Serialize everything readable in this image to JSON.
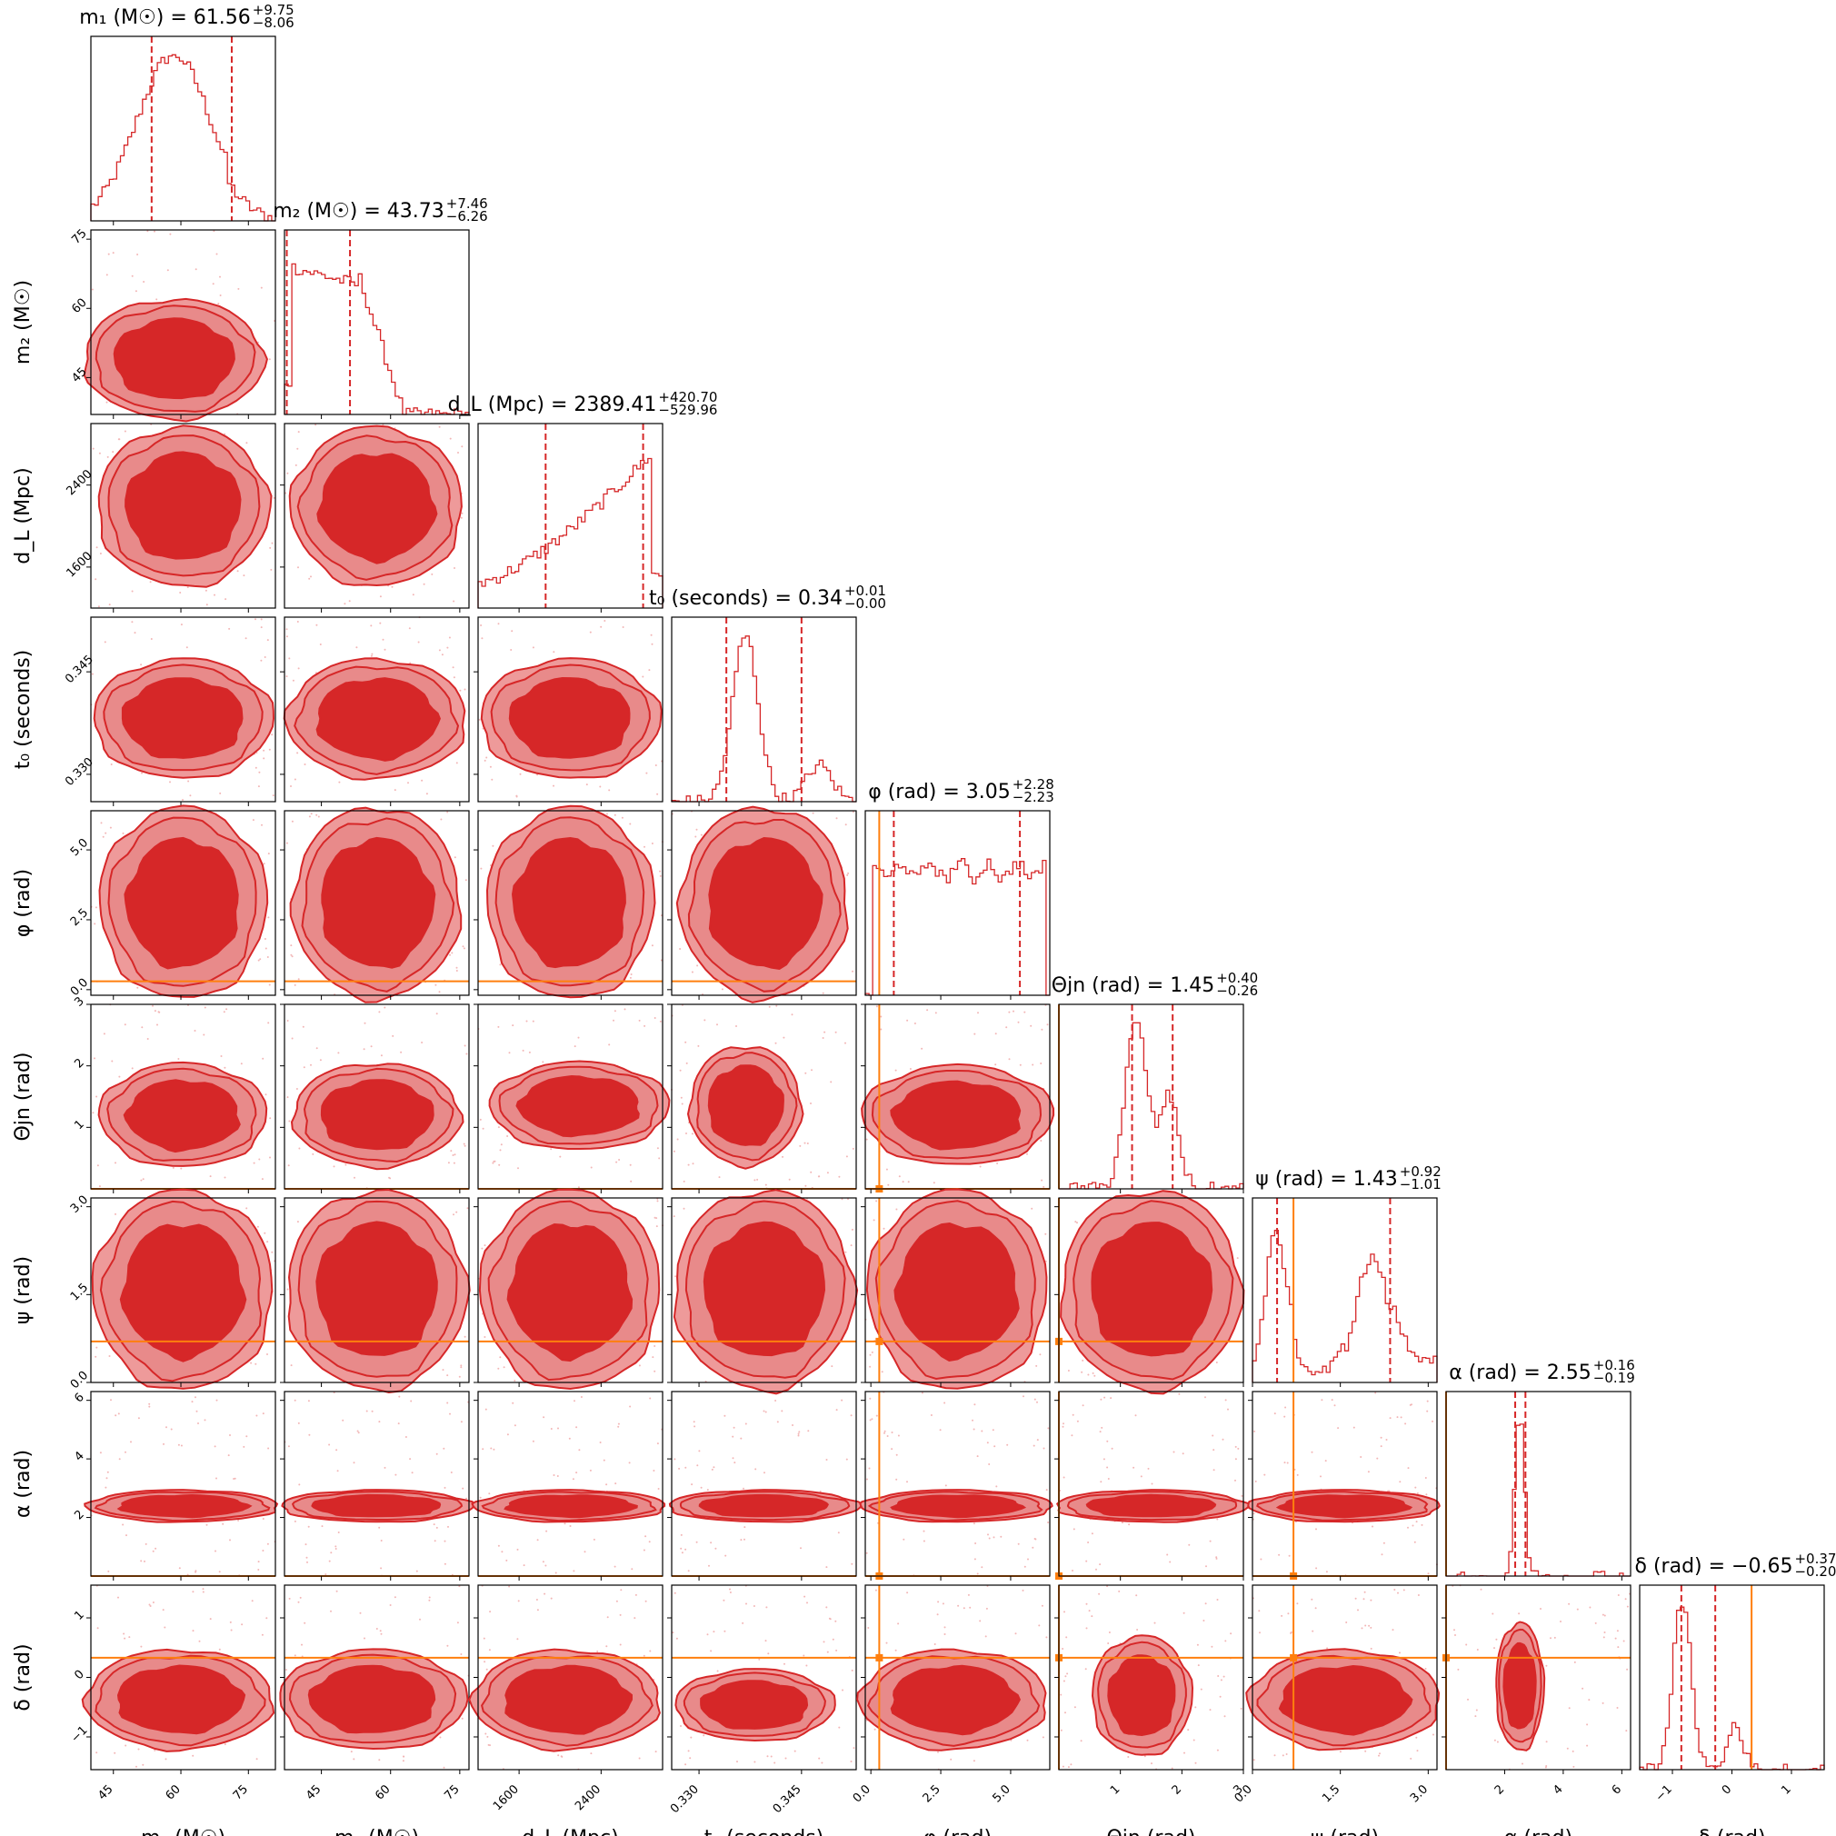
{
  "chart_data": {
    "type": "corner",
    "colors": {
      "posterior": "#d62728",
      "injection": "#ff7f0e"
    },
    "params": [
      {
        "id": "m1",
        "axis_label": "m₁ (M☉)",
        "title_base": "m₁ (M☉) = 61.56",
        "title_sup": "+9.75",
        "title_sub": "−8.06",
        "ticks": [
          "45",
          "60",
          "75"
        ],
        "range": [
          40,
          81
        ],
        "tick_values": [
          45,
          60,
          75
        ]
      },
      {
        "id": "m2",
        "axis_label": "m₂ (M☉)",
        "title_base": "m₂ (M☉) = 43.73",
        "title_sup": "+7.46",
        "title_sub": "−6.26",
        "ticks": [
          "45",
          "60",
          "75"
        ],
        "range": [
          37,
          77
        ],
        "tick_values": [
          45,
          60,
          75
        ]
      },
      {
        "id": "dL",
        "axis_label": "d_L (Mpc)",
        "title_base": "d_L (Mpc) = 2389.41",
        "title_sup": "+420.70",
        "title_sub": "−529.96",
        "ticks": [
          "1600",
          "2400"
        ],
        "range": [
          1200,
          3000
        ],
        "tick_values": [
          1600,
          2400
        ]
      },
      {
        "id": "t0",
        "axis_label": "t₀ (seconds)",
        "title_base": "t₀ (seconds) = 0.34",
        "title_sup": "+0.01",
        "title_sub": "−0.00",
        "ticks": [
          "0.330",
          "0.345"
        ],
        "range": [
          0.326,
          0.353
        ],
        "tick_values": [
          0.33,
          0.345
        ]
      },
      {
        "id": "phi",
        "axis_label": "φ (rad)",
        "title_base": "φ (rad) = 3.05",
        "title_sup": "+2.28",
        "title_sub": "−2.23",
        "ticks": [
          "0.0",
          "2.5",
          "5.0"
        ],
        "range": [
          -0.2,
          6.4
        ],
        "tick_values": [
          0.0,
          2.5,
          5.0
        ]
      },
      {
        "id": "theta",
        "axis_label": "Θjn (rad)",
        "title_base": "Θjn (rad) = 1.45",
        "title_sup": "+0.40",
        "title_sub": "−0.26",
        "ticks": [
          "1",
          "2",
          "3"
        ],
        "range": [
          0.0,
          3.0
        ],
        "tick_values": [
          1,
          2,
          3
        ]
      },
      {
        "id": "psi",
        "axis_label": "ψ (rad)",
        "title_base": "ψ (rad) = 1.43",
        "title_sup": "+0.92",
        "title_sub": "−1.01",
        "ticks": [
          "0.0",
          "1.5",
          "3.0"
        ],
        "range": [
          0.0,
          3.15
        ],
        "tick_values": [
          0.0,
          1.5,
          3.0
        ]
      },
      {
        "id": "alpha",
        "axis_label": "α (rad)",
        "title_base": "α (rad) = 2.55",
        "title_sup": "+0.16",
        "title_sub": "−0.19",
        "ticks": [
          "2",
          "4",
          "6"
        ],
        "range": [
          0.0,
          6.3
        ],
        "tick_values": [
          2,
          4,
          6
        ]
      },
      {
        "id": "delta",
        "axis_label": "δ (rad)",
        "title_base": "δ (rad) = −0.65",
        "title_sup": "+0.37",
        "title_sub": "−0.20",
        "ticks": [
          "−1",
          "0",
          "1"
        ],
        "range": [
          -1.55,
          1.55
        ],
        "tick_values": [
          -1,
          0,
          1
        ]
      }
    ],
    "injection": [
      null,
      null,
      null,
      null,
      0.3,
      0.0,
      0.7,
      0.0,
      0.33
    ],
    "quantiles": [
      [
        53.5,
        71.3
      ],
      [
        37.5,
        51.2
      ],
      [
        1859,
        2810
      ],
      [
        0.334,
        0.345
      ],
      [
        0.82,
        5.33
      ],
      [
        1.19,
        1.85
      ],
      [
        0.42,
        2.35
      ],
      [
        2.36,
        2.71
      ],
      [
        -0.85,
        -0.28
      ]
    ]
  }
}
